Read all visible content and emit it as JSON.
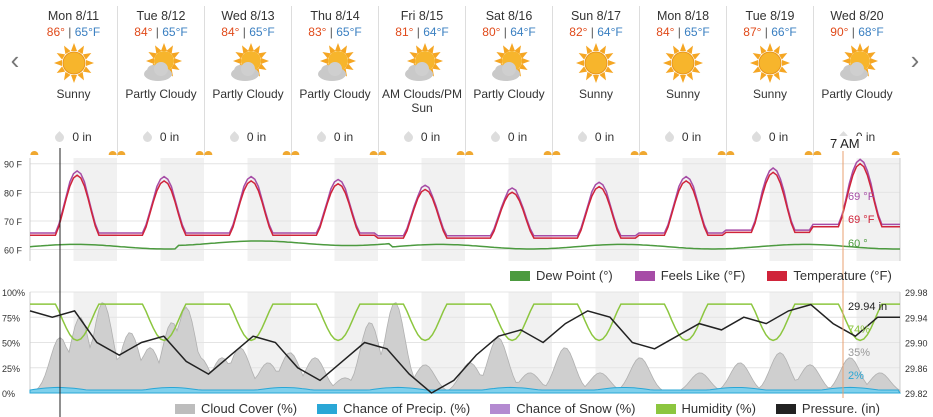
{
  "nav": {
    "prev": "‹",
    "next": "›"
  },
  "hour_label": "7 AM",
  "days": [
    {
      "date": "Mon 8/11",
      "hi": "86°",
      "lo": "65°F",
      "cond": "Sunny",
      "icon": "sun-icon",
      "precip": "0 in"
    },
    {
      "date": "Tue 8/12",
      "hi": "84°",
      "lo": "65°F",
      "cond": "Partly Cloudy",
      "icon": "partly-cloudy-icon",
      "precip": "0 in"
    },
    {
      "date": "Wed 8/13",
      "hi": "84°",
      "lo": "65°F",
      "cond": "Partly Cloudy",
      "icon": "partly-cloudy-icon",
      "precip": "0 in"
    },
    {
      "date": "Thu 8/14",
      "hi": "83°",
      "lo": "65°F",
      "cond": "Partly Cloudy",
      "icon": "partly-cloudy-icon",
      "precip": "0 in"
    },
    {
      "date": "Fri 8/15",
      "hi": "81°",
      "lo": "64°F",
      "cond": "AM Clouds/PM Sun",
      "icon": "partly-cloudy-icon",
      "precip": "0 in"
    },
    {
      "date": "Sat 8/16",
      "hi": "80°",
      "lo": "64°F",
      "cond": "Partly Cloudy",
      "icon": "partly-cloudy-icon",
      "precip": "0 in"
    },
    {
      "date": "Sun 8/17",
      "hi": "82°",
      "lo": "64°F",
      "cond": "Sunny",
      "icon": "sun-icon",
      "precip": "0 in"
    },
    {
      "date": "Mon 8/18",
      "hi": "84°",
      "lo": "65°F",
      "cond": "Sunny",
      "icon": "sun-icon",
      "precip": "0 in"
    },
    {
      "date": "Tue 8/19",
      "hi": "87°",
      "lo": "66°F",
      "cond": "Sunny",
      "icon": "sun-icon",
      "precip": "0 in"
    },
    {
      "date": "Wed 8/20",
      "hi": "90°",
      "lo": "68°F",
      "cond": "Partly Cloudy",
      "icon": "partly-cloudy-icon",
      "precip": "0 in"
    }
  ],
  "temp_chart": {
    "y_ticks": [
      "90 F",
      "80 F",
      "70 F",
      "60 F"
    ],
    "readouts": {
      "feels_like": "69 °F",
      "temperature": "69 °F",
      "dew_point": "60 °"
    },
    "legend": [
      "Dew Point (°)",
      "Feels Like (°F)",
      "Temperature (°F)"
    ],
    "colors": {
      "dew_point": "#4c9a3f",
      "feels_like": "#a64ca6",
      "temperature": "#d0243a"
    }
  },
  "lower_chart": {
    "y_ticks_left": [
      "100%",
      "75%",
      "50%",
      "25%",
      "0%"
    ],
    "y_ticks_right": [
      "29.98",
      "29.94",
      "29.90",
      "29.86",
      "29.82"
    ],
    "readouts": {
      "pressure": "29.94 in",
      "humidity": "74%",
      "cloud_cover": "35%",
      "precip": "2%"
    },
    "legend": [
      "Cloud Cover (%)",
      "Chance of Precip. (%)",
      "Chance of Snow (%)",
      "Humidity (%)",
      "Pressure. (in)"
    ],
    "colors": {
      "cloud": "#bdbdbd",
      "precip": "#2aa7d6",
      "snow": "#b48ad1",
      "humidity": "#8cc63f",
      "pressure": "#222222"
    }
  }
}
